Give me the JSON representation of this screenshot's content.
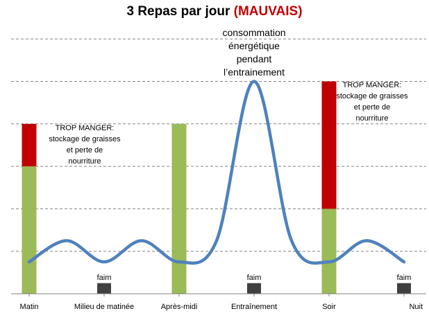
{
  "chart_data": {
    "type": "bar",
    "title": "3 Repas par jour",
    "title_highlight": "(MAUVAIS)",
    "categories": [
      "Matin",
      "Milieu de matinée",
      "Après-midi",
      "Entraînement",
      "Soir",
      "Nuit"
    ],
    "ylim": [
      0,
      6
    ],
    "grid": true,
    "series": [
      {
        "values": [
          3,
          0,
          4,
          0,
          2,
          0
        ],
        "color": "#9bbb59"
      },
      {
        "values": [
          1,
          0,
          0,
          0,
          3,
          0
        ],
        "color": "#c00000"
      },
      {
        "values": [
          0,
          0.25,
          0,
          0.25,
          0,
          0.25
        ],
        "color": "#404040"
      }
    ],
    "curve": {
      "color": "#4f81bd",
      "x": [
        0,
        0.5,
        1,
        1.5,
        2,
        2.5,
        3,
        3.5,
        4,
        4.5,
        5
      ],
      "y": [
        0.75,
        1.25,
        0.75,
        1.25,
        0.75,
        1.25,
        5,
        1.25,
        0.75,
        1.25,
        0.75
      ]
    },
    "annotations": [
      {
        "id": "faim1",
        "lines": [
          "faim"
        ]
      },
      {
        "id": "faim2",
        "lines": [
          "faim"
        ]
      },
      {
        "id": "faim3",
        "lines": [
          "faim"
        ]
      },
      {
        "id": "trop1",
        "lines": [
          "TROP MANGER:",
          "stockage de graisses",
          "et perte de",
          "nourriture"
        ]
      },
      {
        "id": "trop2",
        "lines": [
          "TROP MANGER:",
          "stockage de graisses",
          "et perte de",
          "nourriture"
        ]
      },
      {
        "id": "conso",
        "lines": [
          "consommation",
          "énergétique",
          "pendant",
          "l’entrainement"
        ]
      }
    ]
  }
}
